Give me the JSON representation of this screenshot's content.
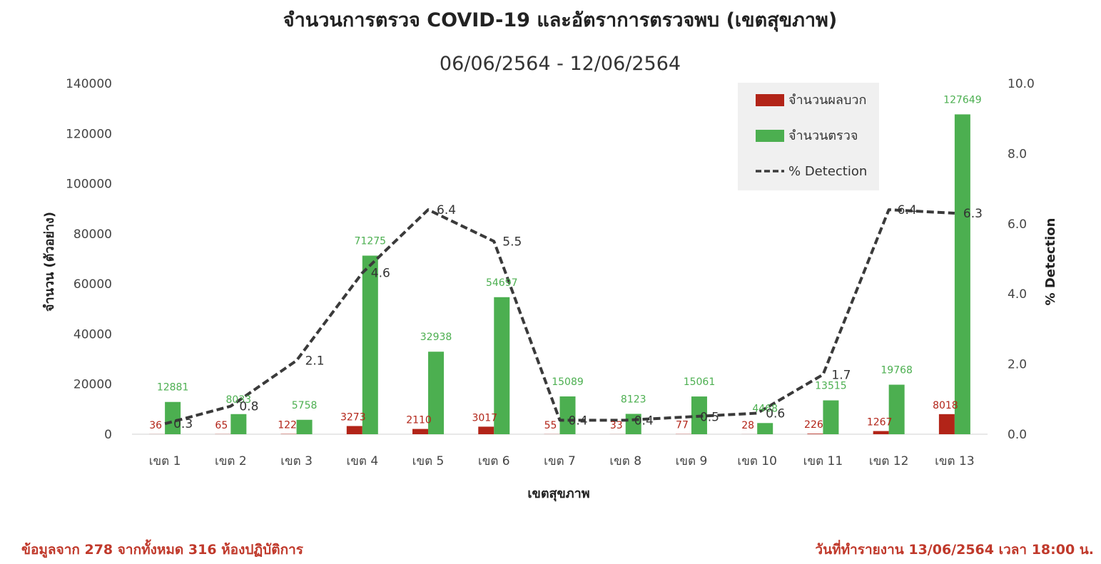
{
  "chart_data": {
    "type": "bar",
    "title": "จำนวนการตรวจ COVID-19 และอัตราการตรวจพบ (เขตสุขภาพ)",
    "subtitle": "06/06/2564 - 12/06/2564",
    "xlabel": "เขตสุขภาพ",
    "ylabel": "จำนวน (ตัวอย่าง)",
    "y2label": "% Detection",
    "ylim": [
      0,
      140000
    ],
    "yticks": [
      "0",
      "20000",
      "40000",
      "60000",
      "80000",
      "100000",
      "120000",
      "140000"
    ],
    "y2lim": [
      0,
      10
    ],
    "y2ticks": [
      "0.0",
      "2.0",
      "4.0",
      "6.0",
      "8.0",
      "10.0"
    ],
    "categories": [
      "เขต 1",
      "เขต 2",
      "เขต 3",
      "เขต 4",
      "เขต 5",
      "เขต 6",
      "เขต 7",
      "เขต 8",
      "เขต 9",
      "เขต 10",
      "เขต 11",
      "เขต 12",
      "เขต 13"
    ],
    "series": [
      {
        "name": "จำนวนผลบวก",
        "type": "bar",
        "color": "#b22418",
        "values": [
          36,
          65,
          122,
          3273,
          2110,
          3017,
          55,
          33,
          77,
          28,
          226,
          1267,
          8018
        ]
      },
      {
        "name": "จำนวนตรวจ",
        "type": "bar",
        "color": "#4caf50",
        "values": [
          12881,
          8033,
          5758,
          71275,
          32938,
          54697,
          15089,
          8123,
          15061,
          4468,
          13515,
          19768,
          127649
        ]
      },
      {
        "name": "% Detection",
        "type": "line",
        "color": "#3a3a3a",
        "axis": "right",
        "values": [
          0.3,
          0.8,
          2.1,
          4.6,
          6.4,
          5.5,
          0.4,
          0.4,
          0.5,
          0.6,
          1.7,
          6.4,
          6.3
        ]
      }
    ],
    "legend": "top-right",
    "grid": false
  },
  "footer": {
    "left": "ข้อมูลจาก 278 จากทั้งหมด 316 ห้องปฏิบัติการ",
    "right": "วันที่ทำรายงาน 13/06/2564 เวลา 18:00 น."
  }
}
